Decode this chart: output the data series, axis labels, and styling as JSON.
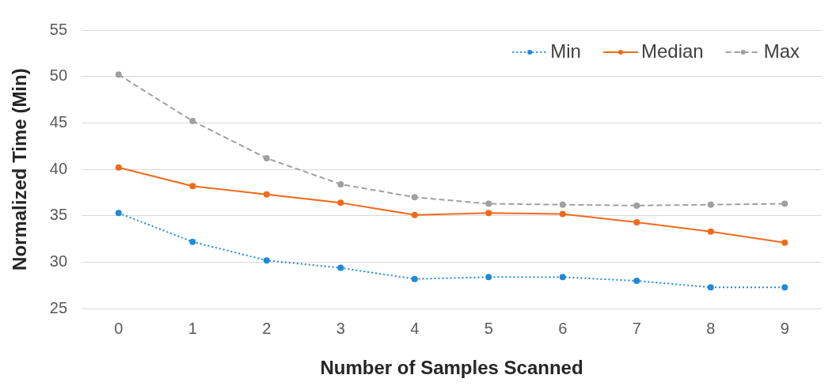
{
  "chart_data": {
    "type": "line",
    "xlabel": "Number of Samples Scanned",
    "ylabel": "Normalized Time (Min)",
    "categories": [
      "0",
      "1",
      "2",
      "3",
      "4",
      "5",
      "6",
      "7",
      "8",
      "9"
    ],
    "ylim": [
      25,
      55
    ],
    "yticks": [
      25,
      30,
      35,
      40,
      45,
      50,
      55
    ],
    "grid": "y",
    "legend": "top right",
    "marker": "circle",
    "series": [
      {
        "name": "Min",
        "color": "#1f8ad8",
        "line_style": "dotted",
        "values": [
          35.3,
          32.2,
          30.2,
          29.4,
          28.2,
          28.4,
          28.4,
          28.0,
          27.3,
          27.3
        ]
      },
      {
        "name": "Median",
        "color": "#f06a1c",
        "line_style": "solid",
        "values": [
          40.2,
          38.2,
          37.3,
          36.4,
          35.1,
          35.3,
          35.2,
          34.3,
          33.3,
          32.1
        ]
      },
      {
        "name": "Max",
        "color": "#a0a0a0",
        "line_style": "dashed",
        "values": [
          50.2,
          45.2,
          41.2,
          38.4,
          37.0,
          36.3,
          36.2,
          36.1,
          36.2,
          36.3
        ]
      }
    ]
  }
}
